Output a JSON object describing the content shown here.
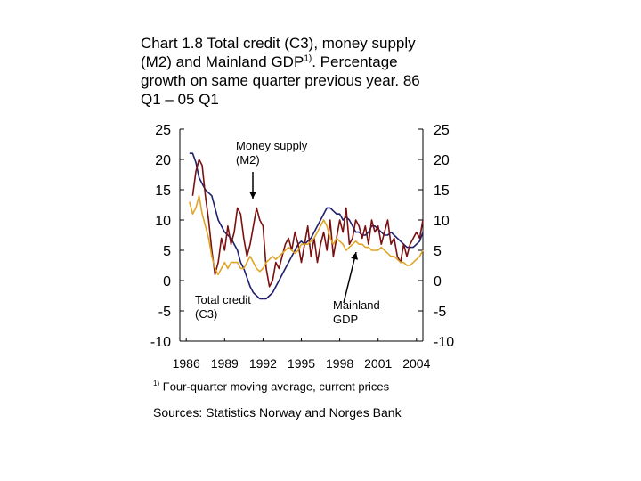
{
  "title": {
    "line1": "Chart 1.8 Total credit (C3), money supply",
    "line2_pre": "(M2) and Mainland GDP",
    "line2_sup": "1)",
    "line2_post": ". Percentage",
    "line3": "growth on same quarter previous year. 86",
    "line4": "Q1 – 05 Q1"
  },
  "footnote": {
    "marker": "1)",
    "text": "Four-quarter moving average, current prices"
  },
  "sources": "Sources: Statistics Norway and Norges Bank",
  "colors": {
    "total_credit": "#1f1f6e",
    "money_supply": "#7a1010",
    "mainland_gdp": "#e0a526",
    "axis": "#000000"
  },
  "chart_data": {
    "type": "line",
    "x_ticks": [
      "1986",
      "1989",
      "1992",
      "1995",
      "1998",
      "2001",
      "2004"
    ],
    "y_ticks_left": [
      "25",
      "20",
      "15",
      "10",
      "5",
      "0",
      "-5",
      "-10"
    ],
    "y_ticks_right": [
      "25",
      "20",
      "15",
      "10",
      "5",
      "0",
      "-5",
      "-10"
    ],
    "ylim": [
      -10,
      25
    ],
    "xlim": [
      1986.0,
      2005.0
    ],
    "grid": false,
    "annotations": [
      {
        "text_lines": [
          "Money supply",
          "(M2)"
        ],
        "series": "money_supply"
      },
      {
        "text_lines": [
          "Total credit",
          "(C3)"
        ],
        "series": "total_credit"
      },
      {
        "text_lines": [
          "Mainland",
          "GDP"
        ],
        "series": "mainland_gdp"
      }
    ],
    "series": [
      {
        "key": "total_credit",
        "x": [
          1986.75,
          1987.0,
          1987.25,
          1987.5,
          1987.75,
          1988.0,
          1988.25,
          1988.5,
          1988.75,
          1989.0,
          1989.25,
          1989.5,
          1989.75,
          1990.0,
          1990.25,
          1990.5,
          1990.75,
          1991.0,
          1991.25,
          1991.5,
          1991.75,
          1992.0,
          1992.25,
          1992.5,
          1992.75,
          1993.0,
          1993.25,
          1993.5,
          1993.75,
          1994.0,
          1994.25,
          1994.5,
          1994.75,
          1995.0,
          1995.25,
          1995.5,
          1995.75,
          1996.0,
          1996.25,
          1996.5,
          1996.75,
          1997.0,
          1997.25,
          1997.5,
          1997.75,
          1998.0,
          1998.25,
          1998.5,
          1998.75,
          1999.0,
          1999.25,
          1999.5,
          1999.75,
          2000.0,
          2000.25,
          2000.5,
          2000.75,
          2001.0,
          2001.25,
          2001.5,
          2001.75,
          2002.0,
          2002.25,
          2002.5,
          2002.75,
          2003.0,
          2003.25,
          2003.5,
          2003.75,
          2004.0,
          2004.25,
          2004.5,
          2004.75,
          2005.0
        ],
        "y": [
          21,
          21,
          19.5,
          17,
          16,
          15,
          14.5,
          14,
          12,
          10,
          9,
          8,
          7.5,
          7,
          6,
          5,
          3,
          2,
          0.5,
          -1,
          -2,
          -2.5,
          -3,
          -3,
          -3,
          -2.5,
          -2,
          -1,
          0,
          1,
          2,
          3,
          4,
          5,
          6,
          6.5,
          6,
          6.5,
          7,
          8,
          9,
          10,
          11,
          12,
          12,
          11.5,
          11,
          11,
          10,
          10.5,
          10,
          9,
          8,
          8,
          7.5,
          7.5,
          8,
          9,
          9,
          8.5,
          8,
          7.5,
          7.5,
          8,
          7.5,
          7,
          6.5,
          6,
          5.5,
          5.5,
          5.5,
          6,
          6.5,
          8
        ]
      },
      {
        "key": "money_supply",
        "x": [
          1987.0,
          1987.25,
          1987.5,
          1987.75,
          1988.0,
          1988.25,
          1988.5,
          1988.75,
          1989.0,
          1989.25,
          1989.5,
          1989.75,
          1990.0,
          1990.25,
          1990.5,
          1990.75,
          1991.0,
          1991.25,
          1991.5,
          1991.75,
          1992.0,
          1992.25,
          1992.5,
          1992.75,
          1993.0,
          1993.25,
          1993.5,
          1993.75,
          1994.0,
          1994.25,
          1994.5,
          1994.75,
          1995.0,
          1995.25,
          1995.5,
          1995.75,
          1996.0,
          1996.25,
          1996.5,
          1996.75,
          1997.0,
          1997.25,
          1997.5,
          1997.75,
          1998.0,
          1998.25,
          1998.5,
          1998.75,
          1999.0,
          1999.25,
          1999.5,
          1999.75,
          2000.0,
          2000.25,
          2000.5,
          2000.75,
          2001.0,
          2001.25,
          2001.5,
          2001.75,
          2002.0,
          2002.25,
          2002.5,
          2002.75,
          2003.0,
          2003.25,
          2003.5,
          2003.75,
          2004.0,
          2004.25,
          2004.5,
          2004.75,
          2005.0
        ],
        "y": [
          14,
          18,
          20,
          19,
          14,
          10,
          5,
          1,
          3,
          7,
          5,
          9,
          6,
          8,
          12,
          11,
          7,
          4,
          6,
          9,
          12,
          10,
          9,
          2,
          -1,
          0,
          3,
          2,
          4,
          6,
          7,
          5,
          8,
          6,
          3,
          6,
          9,
          4,
          7,
          3,
          6,
          8,
          5,
          10,
          4,
          7,
          10,
          8,
          12,
          6,
          7,
          10,
          9,
          7,
          9,
          6,
          10,
          8,
          9,
          6,
          8,
          10,
          6,
          7,
          4,
          3,
          6,
          4,
          6,
          7,
          8,
          7,
          10
        ]
      },
      {
        "key": "mainland_gdp",
        "x": [
          1986.75,
          1987.0,
          1987.25,
          1987.5,
          1987.75,
          1988.0,
          1988.25,
          1988.5,
          1988.75,
          1989.0,
          1989.25,
          1989.5,
          1989.75,
          1990.0,
          1990.25,
          1990.5,
          1990.75,
          1991.0,
          1991.25,
          1991.5,
          1991.75,
          1992.0,
          1992.25,
          1992.5,
          1992.75,
          1993.0,
          1993.25,
          1993.5,
          1993.75,
          1994.0,
          1994.25,
          1994.5,
          1994.75,
          1995.0,
          1995.25,
          1995.5,
          1995.75,
          1996.0,
          1996.25,
          1996.5,
          1996.75,
          1997.0,
          1997.25,
          1997.5,
          1997.75,
          1998.0,
          1998.25,
          1998.5,
          1998.75,
          1999.0,
          1999.25,
          1999.5,
          1999.75,
          2000.0,
          2000.25,
          2000.5,
          2000.75,
          2001.0,
          2001.25,
          2001.5,
          2001.75,
          2002.0,
          2002.25,
          2002.5,
          2002.75,
          2003.0,
          2003.25,
          2003.5,
          2003.75,
          2004.0,
          2004.25,
          2004.5,
          2004.75,
          2005.0
        ],
        "y": [
          13,
          11,
          12,
          14,
          11,
          9,
          7,
          4,
          2,
          1,
          2,
          3,
          2,
          3,
          3,
          3,
          2,
          2,
          3,
          4,
          3,
          2,
          1.5,
          2,
          3,
          3.5,
          4,
          3.5,
          4,
          4.5,
          5,
          5.5,
          5,
          4.5,
          5,
          6,
          6,
          6,
          6.5,
          7,
          8,
          9,
          10,
          9,
          7,
          6,
          7,
          6.5,
          6,
          5,
          5.5,
          6,
          6.5,
          6,
          6,
          5.5,
          5.5,
          5,
          5,
          5,
          5.5,
          5,
          4.5,
          4,
          4,
          3.5,
          3,
          3,
          2.5,
          2.5,
          3,
          3.5,
          4,
          5
        ]
      }
    ]
  }
}
